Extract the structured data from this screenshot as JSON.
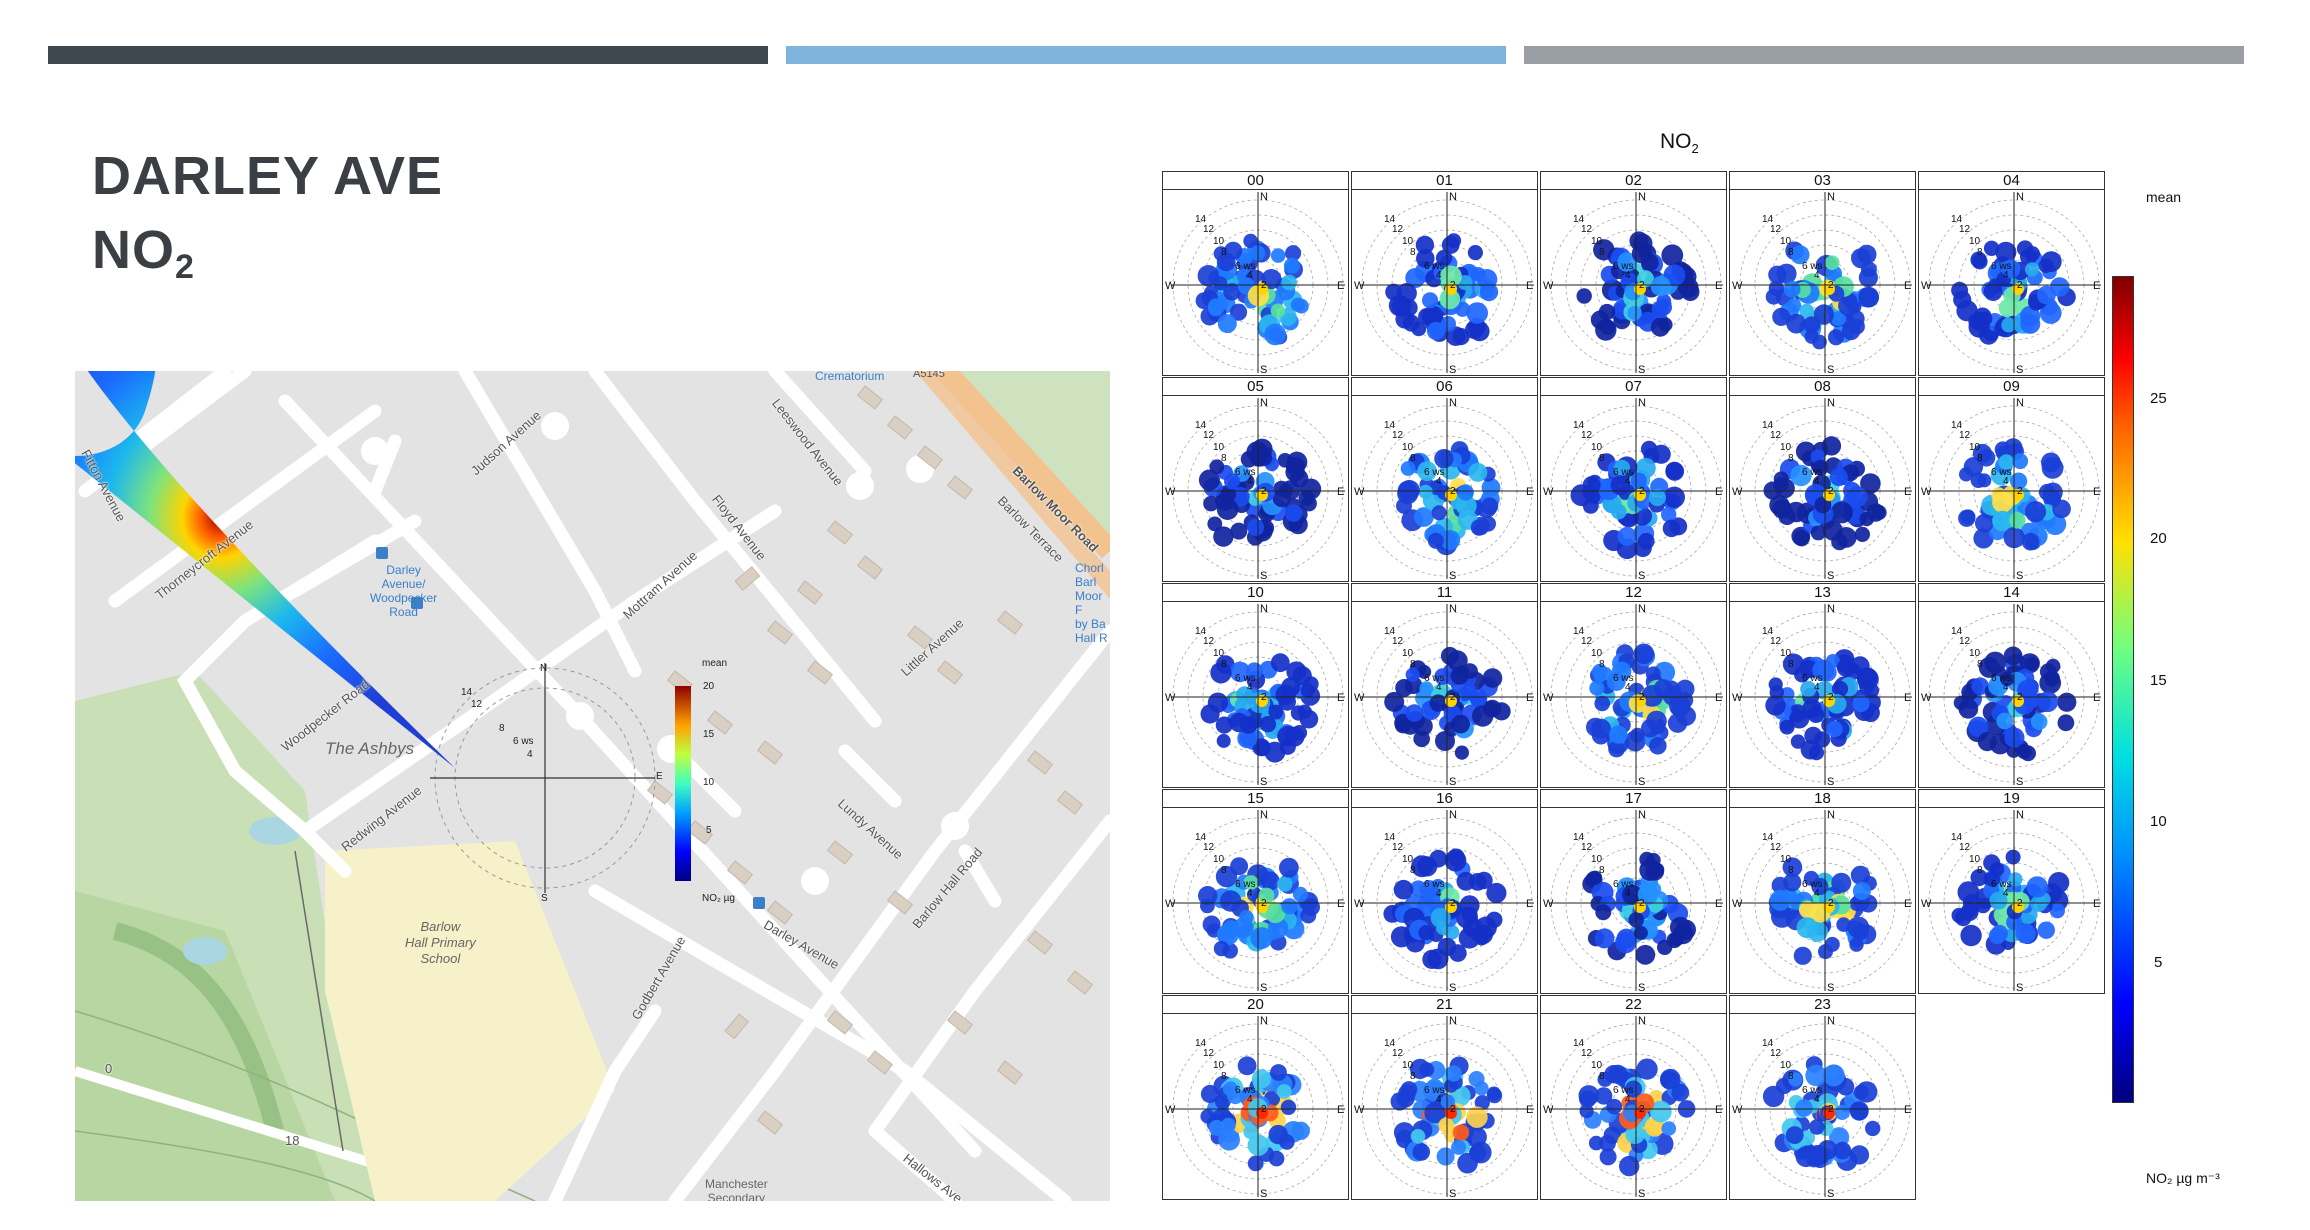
{
  "slide": {
    "title_line1": "DARLEY AVE",
    "title_line2_main": "NO",
    "title_line2_sub": "2",
    "accent_bars": [
      "#40484f",
      "#7fb4df",
      "#9a9fa6"
    ]
  },
  "map": {
    "streets": [
      {
        "name": "Fitton Avenue"
      },
      {
        "name": "Thorneycroft Avenue"
      },
      {
        "name": "Judson Avenue"
      },
      {
        "name": "Leeswood Avenue"
      },
      {
        "name": "Floyd Avenue"
      },
      {
        "name": "Barlow Moor Road"
      },
      {
        "name": "Barlow Terrace"
      },
      {
        "name": "Mottram Avenue"
      },
      {
        "name": "Littler Avenue"
      },
      {
        "name": "Woodpecker Road"
      },
      {
        "name": "Redwing Avenue"
      },
      {
        "name": "Lundy Avenue"
      },
      {
        "name": "Barlow Hall Road"
      },
      {
        "name": "Darley Avenue"
      },
      {
        "name": "Godbert Avenue"
      },
      {
        "name": "Hallows Ave"
      }
    ],
    "pois": {
      "crematorium": "Crematorium",
      "road_ref": "A5145",
      "bus_stop": "Darley\nAvenue/\nWoodpecker\nRoad",
      "church": "Chorl\nBarl\nMoor F\nby Ba\nHall R"
    },
    "areas": {
      "ashbys": "The Ashbys",
      "school": "Barlow\nHall Primary\nSchool",
      "manchester": "Manchester\nSecondary"
    },
    "contour_labels": [
      "0",
      "18"
    ],
    "overlay": {
      "legend_title": "mean",
      "unit": "NO₂ µg",
      "ticks": [
        "20",
        "15",
        "10",
        "5"
      ],
      "compass": {
        "n": "N",
        "e": "E",
        "s": "S"
      },
      "speed_labels": [
        "14",
        "12",
        "8",
        "6 ws",
        "4"
      ]
    }
  },
  "grid": {
    "title_main": "NO",
    "title_sub": "2",
    "hours": [
      "00",
      "01",
      "02",
      "03",
      "04",
      "05",
      "06",
      "07",
      "08",
      "09",
      "10",
      "11",
      "12",
      "13",
      "14",
      "15",
      "16",
      "17",
      "18",
      "19",
      "20",
      "21",
      "22",
      "23"
    ],
    "compass": {
      "n": "N",
      "s": "S",
      "e": "E",
      "w": "W"
    },
    "speed_labels": [
      "14",
      "12",
      "10",
      "8",
      "6 ws",
      "4",
      "2"
    ],
    "colorbar": {
      "label": "mean",
      "unit": "NO₂ µg m⁻³",
      "ticks": [
        "25",
        "20",
        "15",
        "10",
        "5"
      ]
    }
  }
}
